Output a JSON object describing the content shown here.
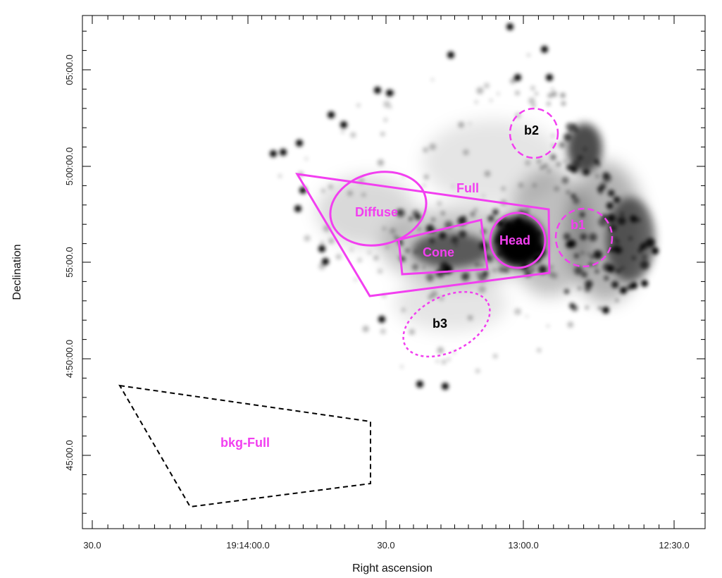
{
  "axes": {
    "xlabel": "Right ascension",
    "ylabel": "Declination",
    "xticks": [
      "30.0",
      "19:14:00.0",
      "30.0",
      "13:00.0",
      "12:30.0"
    ],
    "yticks": [
      "05:00.0",
      "5:00:00.0",
      "55:00.0",
      "4:50:00.0",
      "45:00.0"
    ]
  },
  "regions": {
    "full": "Full",
    "diffuse": "Diffuse",
    "cone": "Cone",
    "head": "Head",
    "b1": "b1",
    "b2": "b2",
    "b3": "b3",
    "bkg_full": "bkg-Full"
  },
  "colors": {
    "region": "#f23ff0",
    "background_region": "#000000",
    "emission": "#000000",
    "background": "#ffffff"
  }
}
